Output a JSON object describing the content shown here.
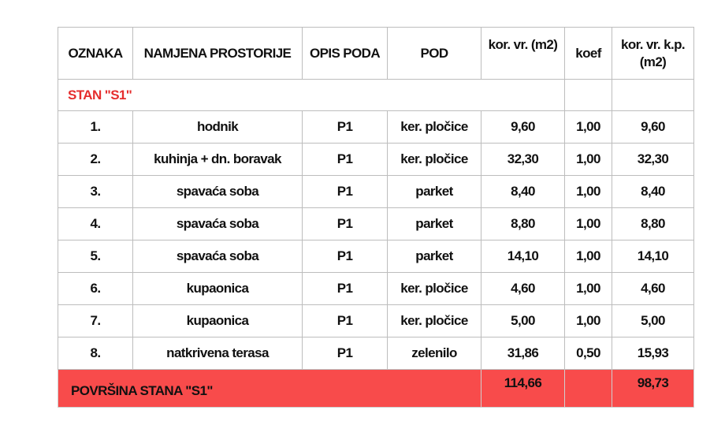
{
  "headers": [
    "OZNAKA",
    "NAMJENA PROSTORIJE",
    "OPIS PODA",
    "POD",
    "kor. vr. (m2)",
    "koef",
    "kor. vr. k.p. (m2)"
  ],
  "section_label": "STAN \"S1\"",
  "rows": [
    {
      "oznaka": "1.",
      "namjena": "hodnik",
      "opis": "P1",
      "pod": "ker. pločice",
      "kor": "9,60",
      "koef": "1,00",
      "korkp": "9,60"
    },
    {
      "oznaka": "2.",
      "namjena": "kuhinja + dn. boravak",
      "opis": "P1",
      "pod": "ker. pločice",
      "kor": "32,30",
      "koef": "1,00",
      "korkp": "32,30"
    },
    {
      "oznaka": "3.",
      "namjena": "spavaća soba",
      "opis": "P1",
      "pod": "parket",
      "kor": "8,40",
      "koef": "1,00",
      "korkp": "8,40"
    },
    {
      "oznaka": "4.",
      "namjena": "spavaća soba",
      "opis": "P1",
      "pod": "parket",
      "kor": "8,80",
      "koef": "1,00",
      "korkp": "8,80"
    },
    {
      "oznaka": "5.",
      "namjena": "spavaća soba",
      "opis": "P1",
      "pod": "parket",
      "kor": "14,10",
      "koef": "1,00",
      "korkp": "14,10"
    },
    {
      "oznaka": "6.",
      "namjena": "kupaonica",
      "opis": "P1",
      "pod": "ker. pločice",
      "kor": "4,60",
      "koef": "1,00",
      "korkp": "4,60"
    },
    {
      "oznaka": "7.",
      "namjena": "kupaonica",
      "opis": "P1",
      "pod": "ker. pločice",
      "kor": "5,00",
      "koef": "1,00",
      "korkp": "5,00"
    },
    {
      "oznaka": "8.",
      "namjena": "natkrivena terasa",
      "opis": "P1",
      "pod": "zelenilo",
      "kor": "31,86",
      "koef": "0,50",
      "korkp": "15,93"
    }
  ],
  "total": {
    "label": "POVRŠINA STANA \"S1\"",
    "kor": "114,66",
    "korkp": "98,73"
  },
  "colors": {
    "section_text": "#e52d2d",
    "total_bg": "#f84b4b"
  }
}
